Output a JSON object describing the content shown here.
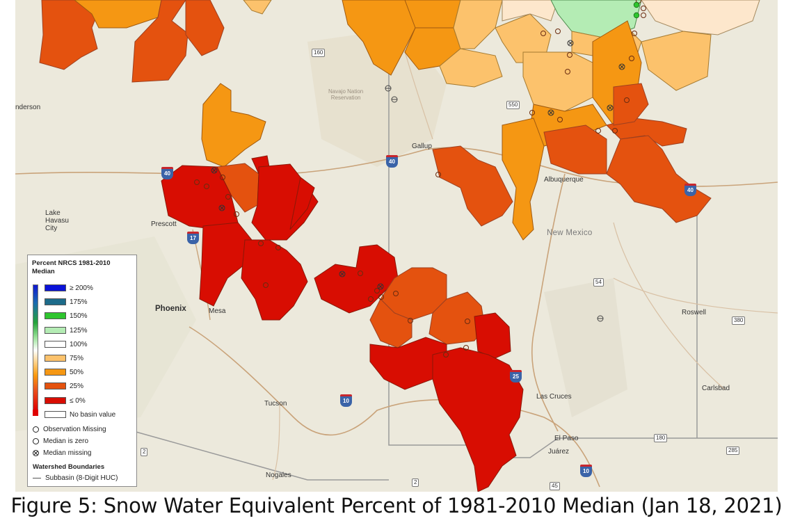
{
  "caption": "Figure 5: Snow Water Equivalent Percent of 1981-2010 Median (Jan 18, 2021)",
  "map": {
    "places": {
      "henderson": "nderson",
      "lake_havasu": "Lake\nHavasu\nCity",
      "prescott": "Prescott",
      "phoenix": "Phoenix",
      "mesa": "Mesa",
      "tucson": "Tucson",
      "nogales": "Nogales",
      "gallup": "Gallup",
      "albuquerque": "Albuquerque",
      "new_mexico": "New Mexico",
      "roswell": "Roswell",
      "carlsbad": "Carlsbad",
      "las_cruces": "Las Cruces",
      "el_paso": "El Paso",
      "juarez": "Juárez",
      "navajo": "Navajo Nation\nReservation"
    },
    "shields": {
      "us160": "160",
      "us550": "550",
      "us54": "54",
      "us380": "380",
      "us285": "285",
      "us180": "180",
      "r2a": "2",
      "r2b": "2",
      "r45": "45"
    },
    "interstates": {
      "i40a": "40",
      "i40b": "40",
      "i40c": "40",
      "i17": "17",
      "i10a": "10",
      "i10b": "10",
      "i25": "25"
    },
    "colors": {
      "le0": "#d80d02",
      "p25": "#e4520f",
      "p50": "#f59713",
      "p75": "#fcc26c",
      "p100": "#fde7cc",
      "p125": "#b4ecb4",
      "p150": "#2ec52e",
      "p175": "#1d6b8a",
      "ge200": "#0a12d8",
      "map_bg": "#ece9dc"
    }
  },
  "legend": {
    "title": "Percent NRCS 1981-2010\nMedian",
    "classes": [
      {
        "label": "≥ 200%",
        "color": "#0a12d8"
      },
      {
        "label": "175%",
        "color": "#1d6b8a"
      },
      {
        "label": "150%",
        "color": "#2ec52e"
      },
      {
        "label": "125%",
        "color": "#b4ecb4"
      },
      {
        "label": "100%",
        "color": "#ffffff"
      },
      {
        "label": "75%",
        "color": "#fcc26c"
      },
      {
        "label": "50%",
        "color": "#f59713"
      },
      {
        "label": "25%",
        "color": "#e4520f"
      },
      {
        "label": "≤ 0%",
        "color": "#d80d02"
      },
      {
        "label": "No basin value",
        "color": "#ffffff"
      }
    ],
    "symbols": {
      "obs_missing": "Observation Missing",
      "median_zero": "Median is zero",
      "median_missing": "Median missing"
    },
    "boundaries_title": "Watershed Boundaries",
    "subbasin": "Subbasin (8-Digit HUC)"
  }
}
